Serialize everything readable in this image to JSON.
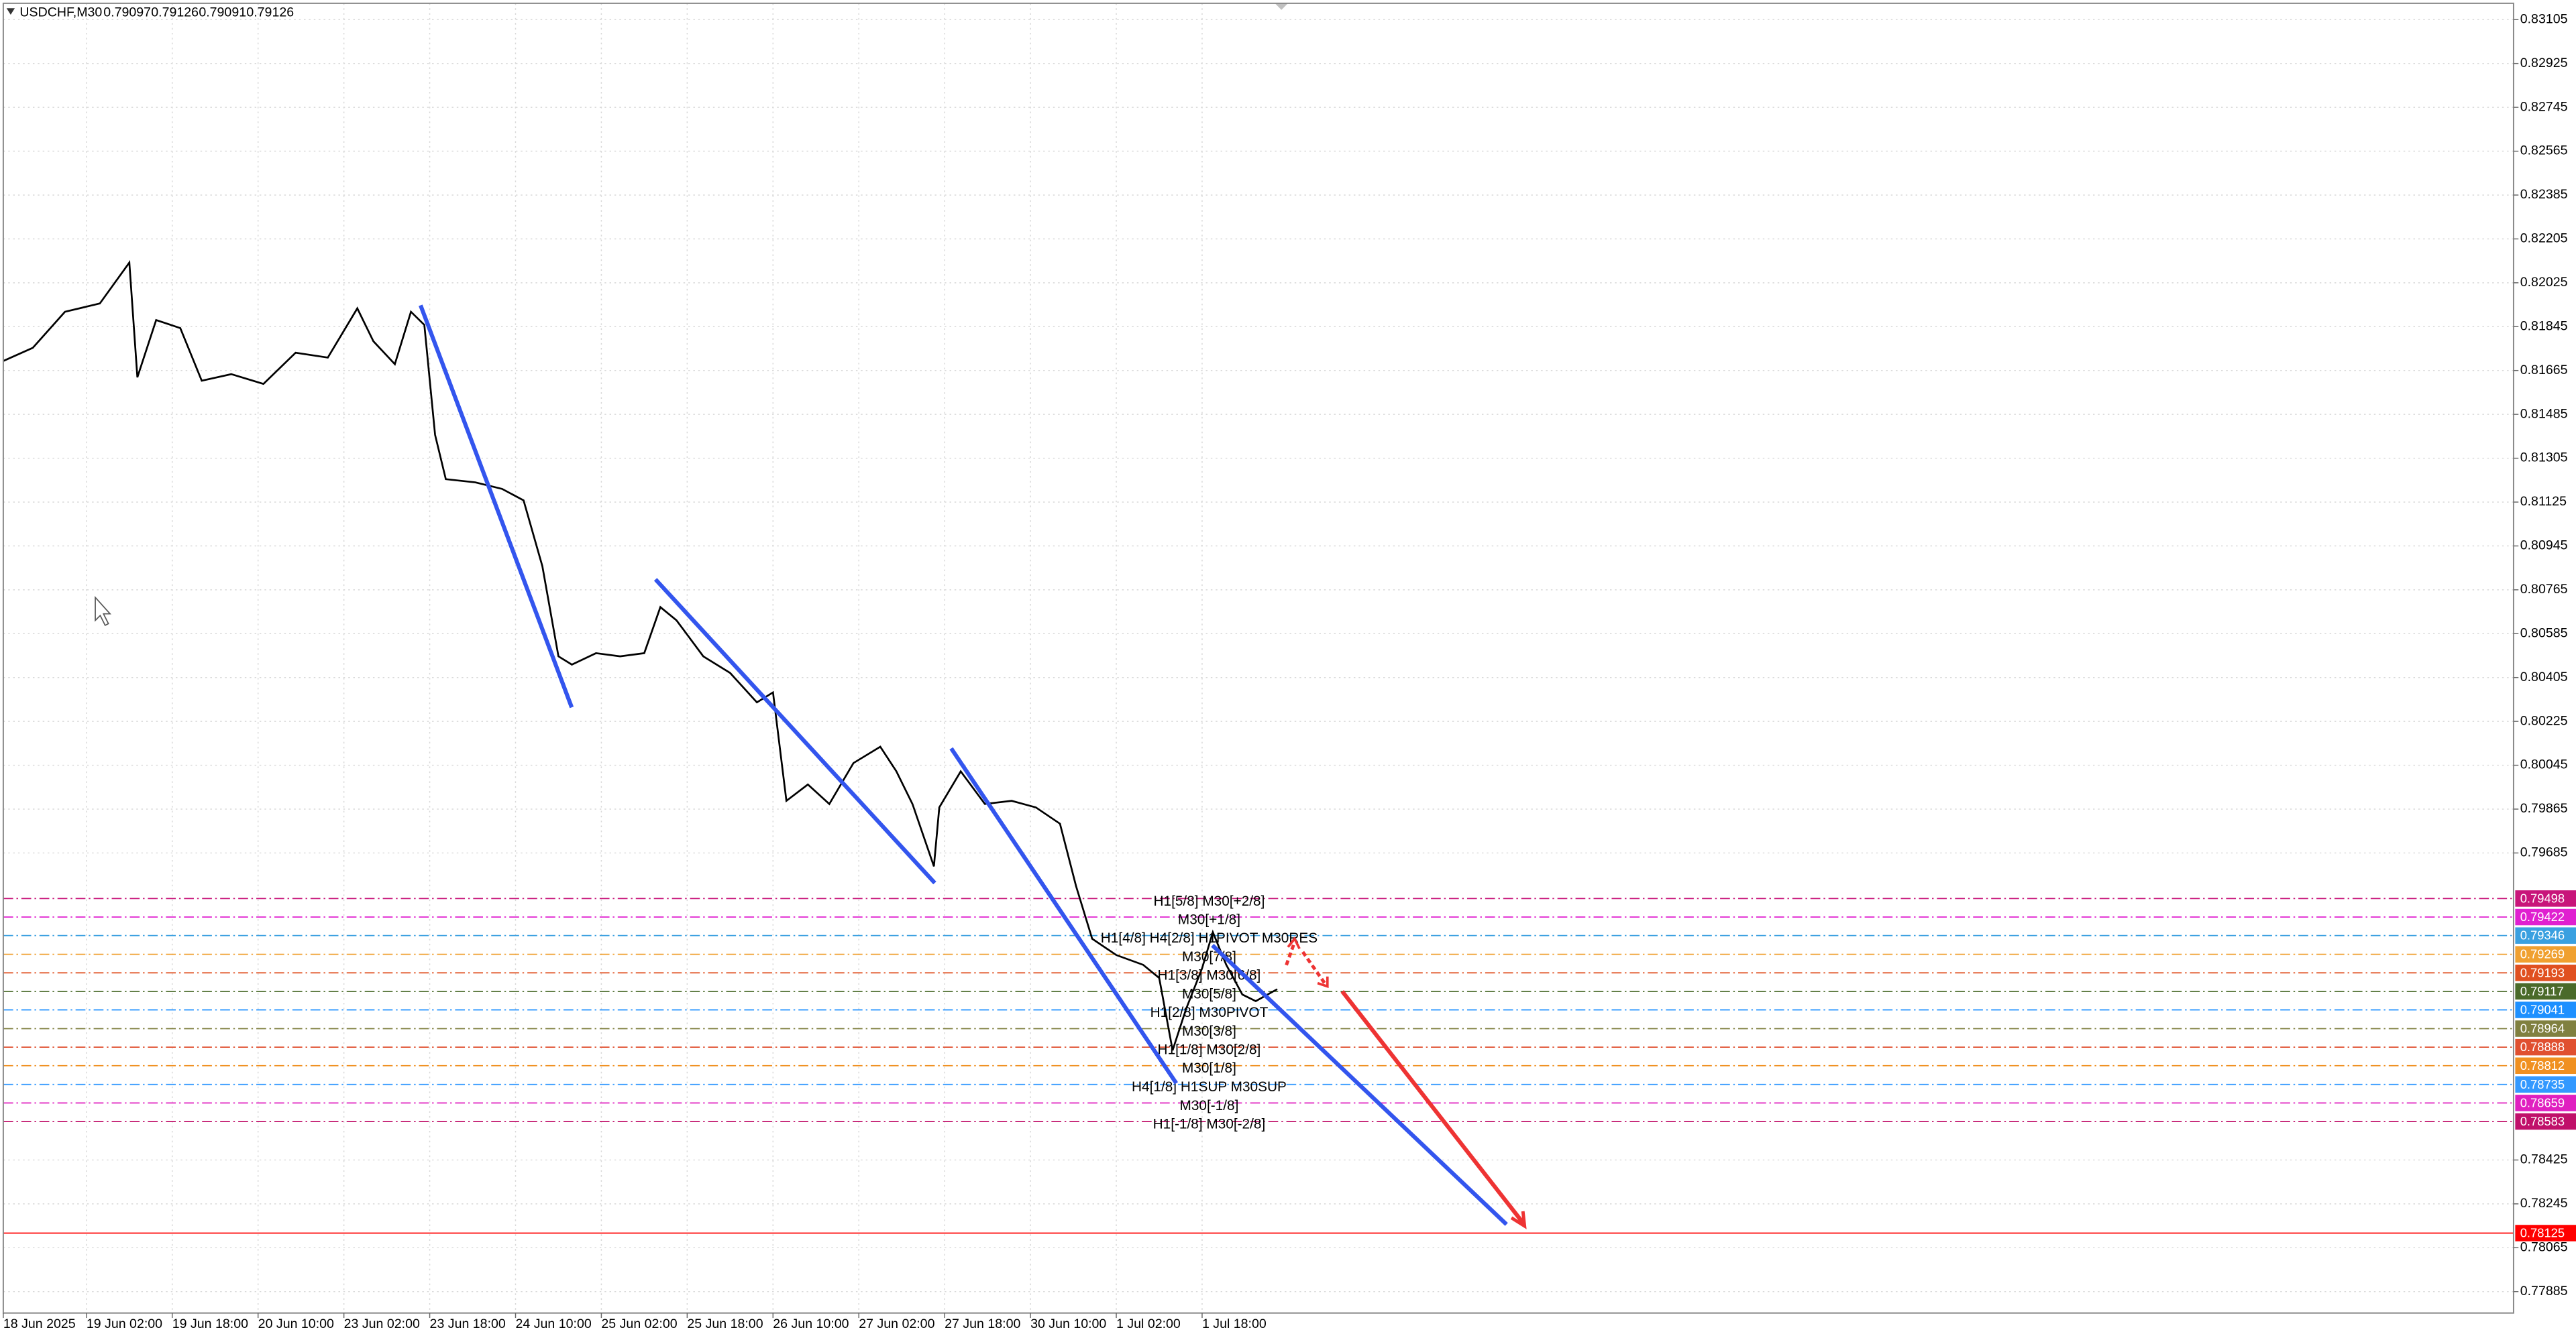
{
  "chart_data": {
    "type": "line",
    "title": "USDCHF,M30",
    "ohlc": [
      0.79097,
      0.79126,
      0.79091,
      0.79126
    ],
    "x": [
      0,
      11,
      23,
      36,
      47,
      50,
      57,
      66,
      74,
      85,
      97,
      109,
      121,
      132,
      138,
      146,
      152,
      157,
      161,
      165,
      176,
      186,
      194,
      201,
      207,
      212,
      221,
      230,
      239,
      245,
      251,
      261,
      271,
      281,
      287,
      292,
      300,
      308,
      317,
      327,
      333,
      339,
      347,
      349,
      357,
      366,
      376,
      385,
      394,
      400,
      406,
      415,
      425,
      431,
      436,
      441,
      447,
      451,
      456,
      462,
      467,
      475
    ],
    "series": [
      {
        "color": "#000000",
        "values": [
          0.81704,
          0.81758,
          0.81906,
          0.8194,
          0.82108,
          0.81637,
          0.81872,
          0.81839,
          0.81623,
          0.8165,
          0.8161,
          0.81738,
          0.81718,
          0.8192,
          0.81785,
          0.81691,
          0.81906,
          0.81852,
          0.81401,
          0.81219,
          0.81206,
          0.81179,
          0.81132,
          0.80862,
          0.80492,
          0.80458,
          0.80505,
          0.80492,
          0.80505,
          0.80694,
          0.8064,
          0.80492,
          0.80424,
          0.80303,
          0.80344,
          0.79899,
          0.79966,
          0.79886,
          0.80054,
          0.80121,
          0.8002,
          0.79886,
          0.7963,
          0.79872,
          0.8002,
          0.79886,
          0.79899,
          0.79872,
          0.79805,
          0.79549,
          0.79333,
          0.79266,
          0.79226,
          0.79172,
          0.78875,
          0.79044,
          0.79212,
          0.7936,
          0.79226,
          0.79104,
          0.79077,
          0.79126
        ]
      }
    ],
    "xlim": [
      0,
      936
    ],
    "xticks": [
      {
        "value": 0,
        "label": "18 Jun 2025"
      },
      {
        "value": 31,
        "label": "19 Jun 02:00"
      },
      {
        "value": 63,
        "label": "19 Jun 18:00"
      },
      {
        "value": 95,
        "label": "20 Jun 10:00"
      },
      {
        "value": 127,
        "label": "23 Jun 02:00"
      },
      {
        "value": 159,
        "label": "23 Jun 18:00"
      },
      {
        "value": 191,
        "label": "24 Jun 10:00"
      },
      {
        "value": 223,
        "label": "25 Jun 02:00"
      },
      {
        "value": 255,
        "label": "25 Jun 18:00"
      },
      {
        "value": 287,
        "label": "26 Jun 10:00"
      },
      {
        "value": 319,
        "label": "27 Jun 02:00"
      },
      {
        "value": 351,
        "label": "27 Jun 18:00"
      },
      {
        "value": 383,
        "label": "30 Jun 10:00"
      },
      {
        "value": 415,
        "label": "1 Jul 02:00"
      },
      {
        "value": 447,
        "label": "1 Jul 18:00"
      }
    ],
    "ylim": [
      0.77797,
      0.83172
    ],
    "yticks": [
      0.83105,
      0.82925,
      0.82745,
      0.82565,
      0.82385,
      0.82205,
      0.82025,
      0.81845,
      0.81665,
      0.81485,
      0.81305,
      0.81125,
      0.80945,
      0.80765,
      0.80585,
      0.80405,
      0.80225,
      0.80045,
      0.79865,
      0.79685,
      0.78425,
      0.78245,
      0.78065,
      0.77885
    ],
    "grid": true,
    "levels": [
      {
        "value": 0.79498,
        "label": "H1[5/8] M30[+2/8]",
        "color": "#c8157a"
      },
      {
        "value": 0.79422,
        "label": "M30[+1/8]",
        "color": "#e020d0"
      },
      {
        "value": 0.79346,
        "label": "H1[4/8] H4[2/8] H1PIVOT M30RES",
        "color": "#3aa0e0"
      },
      {
        "value": 0.79269,
        "label": "M30[7/8]",
        "color": "#f0a030"
      },
      {
        "value": 0.79193,
        "label": "H1[3/8] M30[6/8]",
        "color": "#e05020"
      },
      {
        "value": 0.79117,
        "label": "M30[5/8]",
        "color": "#4a6a2a"
      },
      {
        "value": 0.79041,
        "label": "H1[2/8] M30PIVOT",
        "color": "#1e90ff"
      },
      {
        "value": 0.78964,
        "label": "M30[3/8]",
        "color": "#808040"
      },
      {
        "value": 0.78888,
        "label": "H1[1/8] M30[2/8]",
        "color": "#e05030"
      },
      {
        "value": 0.78812,
        "label": "M30[1/8]",
        "color": "#f09020"
      },
      {
        "value": 0.78735,
        "label": "H4[1/8] H1SUP M30SUP",
        "color": "#3399ff"
      },
      {
        "value": 0.78659,
        "label": "M30[-1/8]",
        "color": "#e020c0"
      },
      {
        "value": 0.78583,
        "label": "H1[-1/8] M30[-2/8]",
        "color": "#c0106a"
      }
    ],
    "target": {
      "value": 0.78125,
      "color": "#ff0000"
    }
  }
}
